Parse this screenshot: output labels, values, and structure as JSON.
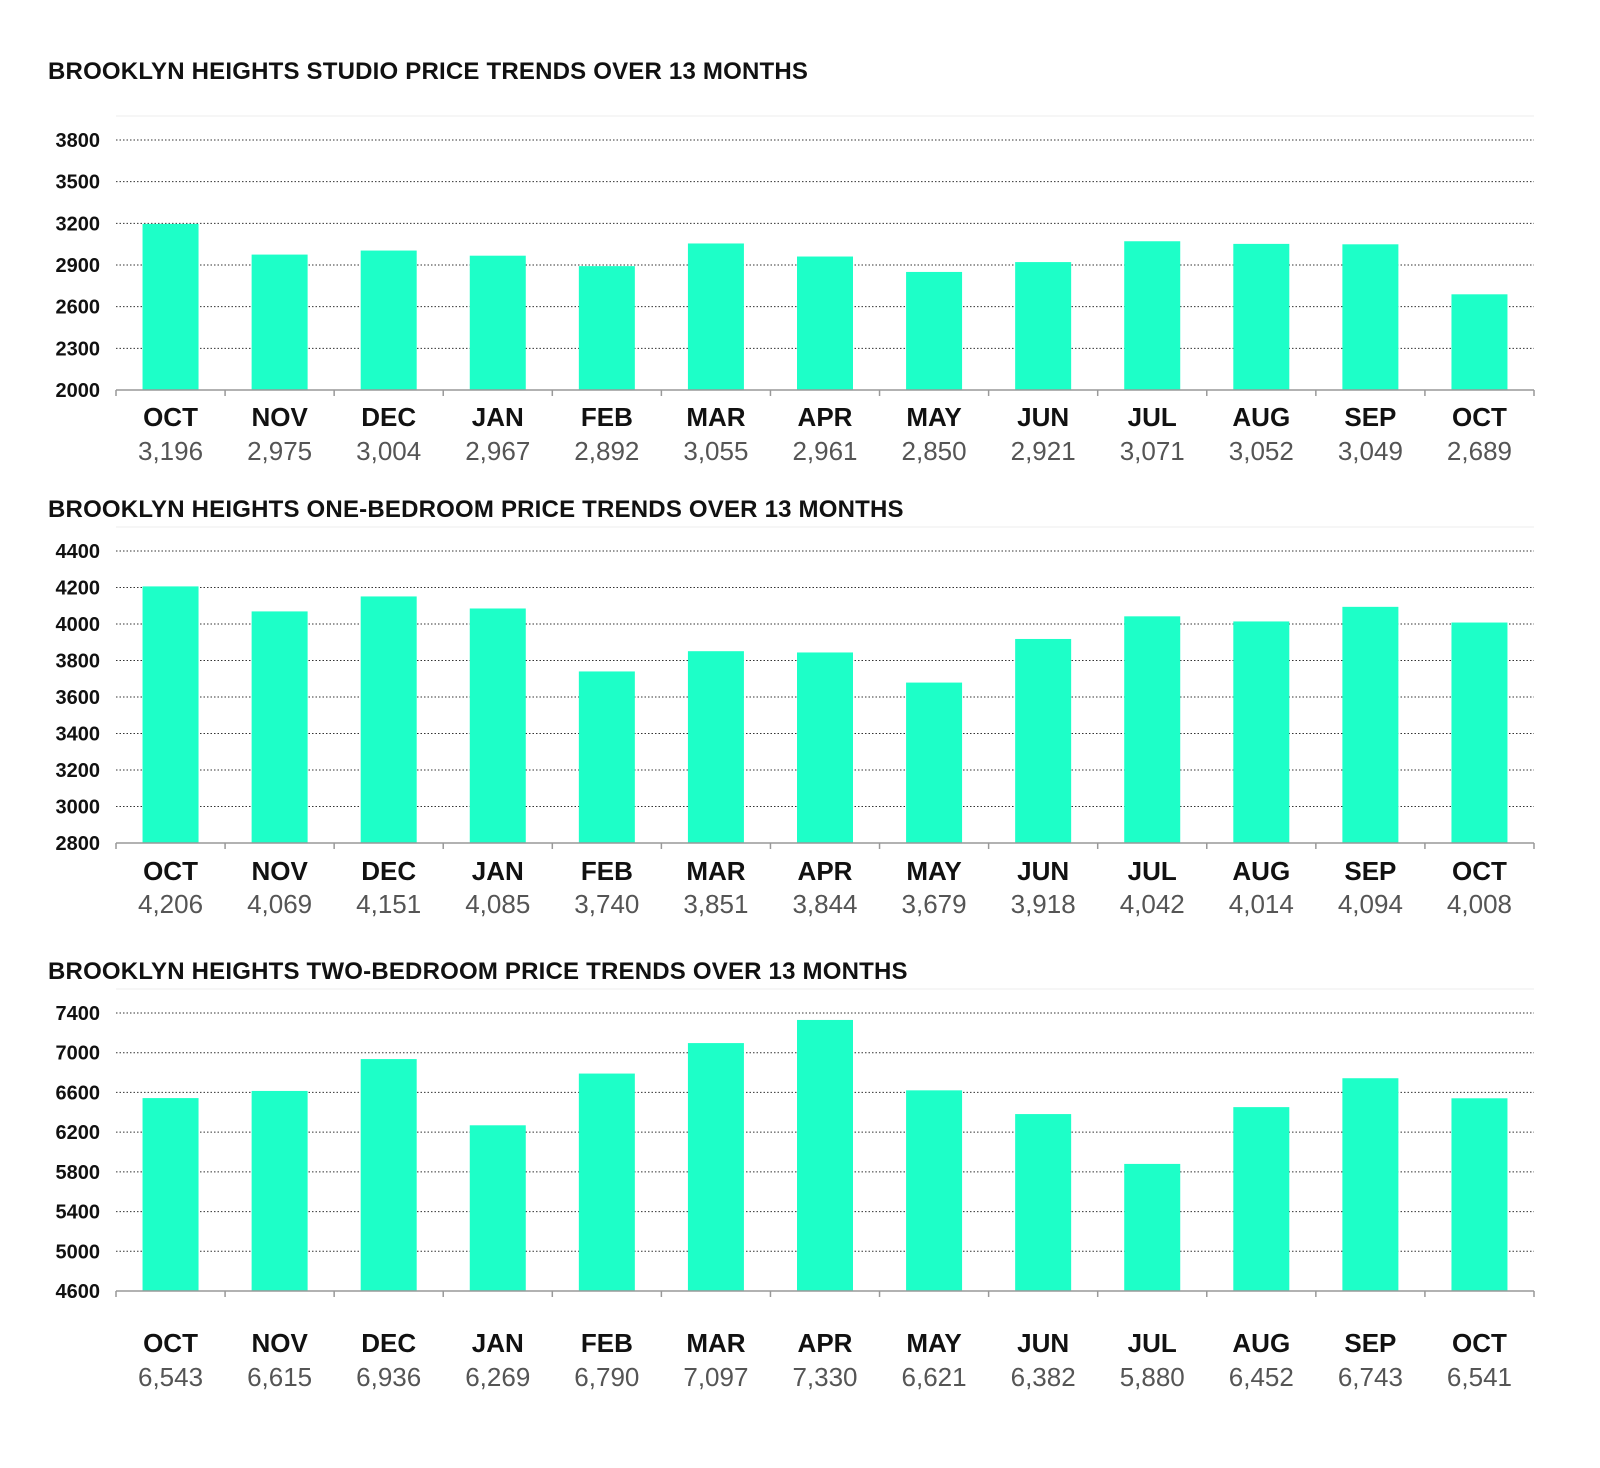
{
  "colors": {
    "bar": "#1dffc8",
    "grid": "#333333",
    "axis": "#999999",
    "text": "#111111",
    "value_text": "#555555"
  },
  "chart_data": [
    {
      "type": "bar",
      "title": "BROOKLYN HEIGHTS STUDIO PRICE TRENDS OVER 13 MONTHS",
      "categories": [
        "OCT",
        "NOV",
        "DEC",
        "JAN",
        "FEB",
        "MAR",
        "APR",
        "MAY",
        "JUN",
        "JUL",
        "AUG",
        "SEP",
        "OCT"
      ],
      "values": [
        3196,
        2975,
        3004,
        2967,
        2892,
        3055,
        2961,
        2850,
        2921,
        3071,
        3052,
        3049,
        2689
      ],
      "value_labels": [
        "3,196",
        "2,975",
        "3,004",
        "2,967",
        "2,892",
        "3,055",
        "2,961",
        "2,850",
        "2,921",
        "3,071",
        "3,052",
        "3,049",
        "2,689"
      ],
      "y_ticks": [
        "2000",
        "2300",
        "2600",
        "2900",
        "3200",
        "3500",
        "3800"
      ],
      "ylim": [
        2000,
        3800
      ],
      "xlabel": "",
      "ylabel": "",
      "grid": "dotted horizontal"
    },
    {
      "type": "bar",
      "title": "BROOKLYN HEIGHTS ONE-BEDROOM PRICE TRENDS OVER 13 MONTHS",
      "categories": [
        "OCT",
        "NOV",
        "DEC",
        "JAN",
        "FEB",
        "MAR",
        "APR",
        "MAY",
        "JUN",
        "JUL",
        "AUG",
        "SEP",
        "OCT"
      ],
      "values": [
        4206,
        4069,
        4151,
        4085,
        3740,
        3851,
        3844,
        3679,
        3918,
        4042,
        4014,
        4094,
        4008
      ],
      "value_labels": [
        "4,206",
        "4,069",
        "4,151",
        "4,085",
        "3,740",
        "3,851",
        "3,844",
        "3,679",
        "3,918",
        "4,042",
        "4,014",
        "4,094",
        "4,008"
      ],
      "y_ticks": [
        "2800",
        "3000",
        "3200",
        "3400",
        "3600",
        "3800",
        "4000",
        "4200",
        "4400"
      ],
      "ylim": [
        2800,
        4400
      ],
      "xlabel": "",
      "ylabel": "",
      "grid": "dotted horizontal"
    },
    {
      "type": "bar",
      "title": "BROOKLYN HEIGHTS TWO-BEDROOM PRICE TRENDS OVER 13 MONTHS",
      "categories": [
        "OCT",
        "NOV",
        "DEC",
        "JAN",
        "FEB",
        "MAR",
        "APR",
        "MAY",
        "JUN",
        "JUL",
        "AUG",
        "SEP",
        "OCT"
      ],
      "values": [
        6543,
        6615,
        6936,
        6269,
        6790,
        7097,
        7330,
        6621,
        6382,
        5880,
        6452,
        6743,
        6541
      ],
      "value_labels": [
        "6,543",
        "6,615",
        "6,936",
        "6,269",
        "6,790",
        "7,097",
        "7,330",
        "6,621",
        "6,382",
        "5,880",
        "6,452",
        "6,743",
        "6,541"
      ],
      "y_ticks": [
        "4600",
        "5000",
        "5400",
        "5800",
        "6200",
        "6600",
        "7000",
        "7400"
      ],
      "ylim": [
        4600,
        7400
      ],
      "xlabel": "",
      "ylabel": "",
      "grid": "dotted horizontal"
    }
  ]
}
